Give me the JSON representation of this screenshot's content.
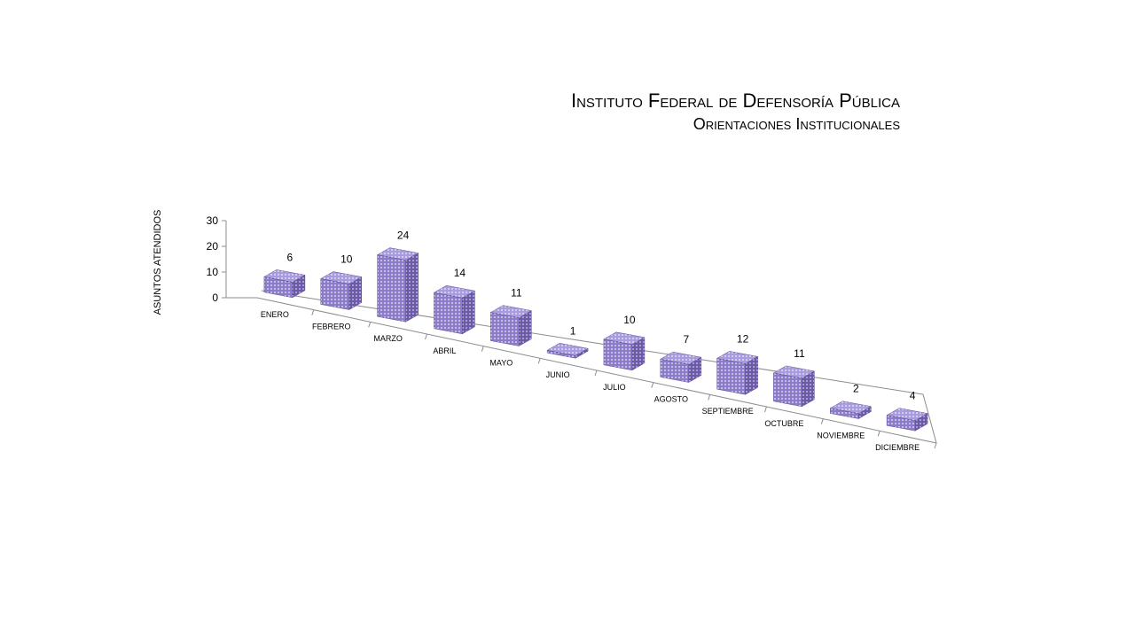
{
  "chart_data": {
    "type": "bar",
    "title": "Instituto Federal de Defensoría Pública",
    "subtitle": "Orientaciones Institucionales",
    "ylabel": "ASUNTOS ATENDIDOS",
    "xlabel": "",
    "ylim": [
      0,
      30
    ],
    "yticks": [
      "0",
      "10",
      "20",
      "30"
    ],
    "grid": false,
    "legend": "none",
    "style": "3d-columns",
    "categories": [
      "ENERO",
      "FEBRERO",
      "MARZO",
      "ABRIL",
      "MAYO",
      "JUNIO",
      "JULIO",
      "AGOSTO",
      "SEPTIEMBRE",
      "OCTUBRE",
      "NOVIEMBRE",
      "DICIEMBRE"
    ],
    "values": [
      6,
      10,
      24,
      14,
      11,
      1,
      10,
      7,
      12,
      11,
      2,
      4
    ],
    "data_labels": [
      "6",
      "10",
      "24",
      "14",
      "11",
      "1",
      "10",
      "7",
      "12",
      "11",
      "2",
      "4"
    ]
  },
  "colors": {
    "bar_front": "#8c7bc8",
    "bar_top": "#a99be0",
    "bar_side": "#6c5aa8",
    "bar_pattern_dot": "#ffffff",
    "axis": "#8c8c8c",
    "text": "#000000"
  }
}
